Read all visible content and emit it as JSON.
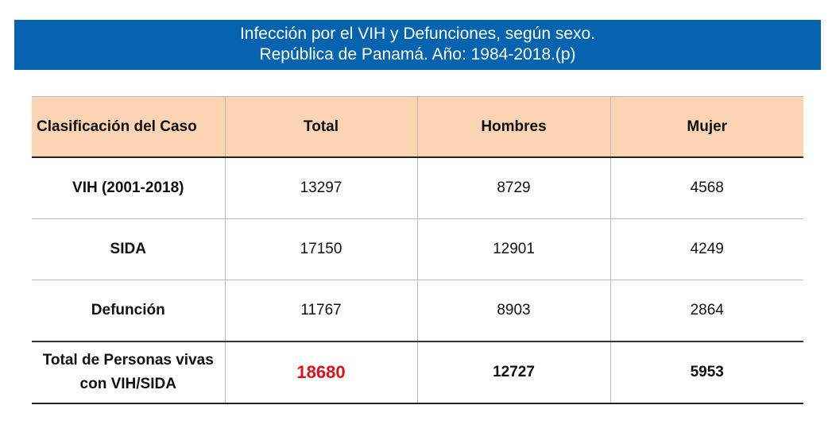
{
  "header": {
    "title": [
      "Infección por el VIH y Defunciones, según sexo.",
      "República de Panamá. Año: 1984-2018.(p)"
    ]
  },
  "table": {
    "columns": [
      "Clasificación del Caso",
      "Total",
      "Hombres",
      "Mujer"
    ],
    "rows": [
      [
        "VIH (2001-2018)",
        13297,
        8729,
        4568
      ],
      [
        "SIDA",
        17150,
        12901,
        4249
      ],
      [
        "Defunción",
        11767,
        8903,
        2864
      ],
      [
        "Total de Personas vivas con VIH/SIDA",
        18680,
        12727,
        5953
      ]
    ]
  }
}
